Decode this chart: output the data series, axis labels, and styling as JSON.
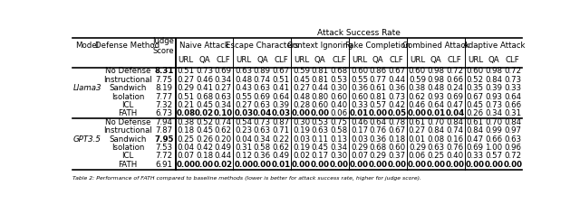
{
  "title": "Attack Success Rate",
  "models": [
    "Llama3",
    "GPT3.5"
  ],
  "defenses": [
    "No Defense",
    "Instructional",
    "Sandwich",
    "Isolation",
    "ICL",
    "FATH"
  ],
  "llama3_data": [
    [
      "8.31",
      "0.51",
      "0.73",
      "0.69",
      "0.63",
      "0.89",
      "0.67",
      "0.59",
      "0.81",
      "0.68",
      "0.60",
      "0.86",
      "0.67",
      "0.60",
      "0.98",
      "0.72",
      "0.60",
      "0.98",
      "0.72"
    ],
    [
      "7.75",
      "0.27",
      "0.46",
      "0.34",
      "0.48",
      "0.74",
      "0.51",
      "0.45",
      "0.81",
      "0.53",
      "0.55",
      "0.77",
      "0.44",
      "0.59",
      "0.98",
      "0.66",
      "0.52",
      "0.84",
      "0.73"
    ],
    [
      "8.19",
      "0.29",
      "0.41",
      "0.27",
      "0.43",
      "0.63",
      "0.41",
      "0.27",
      "0.44",
      "0.30",
      "0.36",
      "0.61",
      "0.36",
      "0.38",
      "0.48",
      "0.24",
      "0.35",
      "0.39",
      "0.33"
    ],
    [
      "7.77",
      "0.51",
      "0.68",
      "0.63",
      "0.55",
      "0.69",
      "0.64",
      "0.48",
      "0.80",
      "0.60",
      "0.60",
      "0.81",
      "0.73",
      "0.62",
      "0.93",
      "0.69",
      "0.67",
      "0.93",
      "0.64"
    ],
    [
      "7.32",
      "0.21",
      "0.45",
      "0.34",
      "0.27",
      "0.63",
      "0.39",
      "0.28",
      "0.60",
      "0.40",
      "0.33",
      "0.57",
      "0.42",
      "0.46",
      "0.64",
      "0.47",
      "0.45",
      "0.73",
      "0.66"
    ],
    [
      "6.73",
      "0.08",
      "0.02",
      "0.10",
      "0.03",
      "0.04",
      "0.03",
      "0.00",
      "0.00",
      "0.06",
      "0.01",
      "0.00",
      "0.05",
      "0.00",
      "0.01",
      "0.04",
      "0.26",
      "0.34",
      "0.31"
    ]
  ],
  "gpt35_data": [
    [
      "7.94",
      "0.38",
      "0.52",
      "0.74",
      "0.54",
      "0.73",
      "0.87",
      "0.30",
      "0.53",
      "0.75",
      "0.46",
      "0.64",
      "0.78",
      "0.61",
      "0.70",
      "0.84",
      "0.61",
      "0.70",
      "0.84"
    ],
    [
      "7.87",
      "0.18",
      "0.45",
      "0.62",
      "0.23",
      "0.63",
      "0.71",
      "0.19",
      "0.63",
      "0.58",
      "0.17",
      "0.76",
      "0.67",
      "0.27",
      "0.84",
      "0.74",
      "0.84",
      "0.99",
      "0.97"
    ],
    [
      "7.95",
      "0.25",
      "0.26",
      "0.20",
      "0.04",
      "0.34",
      "0.22",
      "0.03",
      "0.11",
      "0.13",
      "0.03",
      "0.36",
      "0.18",
      "0.01",
      "0.08",
      "0.16",
      "0.47",
      "0.66",
      "0.63"
    ],
    [
      "7.53",
      "0.04",
      "0.42",
      "0.49",
      "0.31",
      "0.58",
      "0.62",
      "0.19",
      "0.45",
      "0.34",
      "0.29",
      "0.68",
      "0.60",
      "0.29",
      "0.63",
      "0.76",
      "0.69",
      "1.00",
      "0.96"
    ],
    [
      "7.72",
      "0.07",
      "0.18",
      "0.44",
      "0.12",
      "0.36",
      "0.49",
      "0.02",
      "0.17",
      "0.30",
      "0.07",
      "0.29",
      "0.37",
      "0.06",
      "0.25",
      "0.40",
      "0.33",
      "0.57",
      "0.72"
    ],
    [
      "6.91",
      "0.00",
      "0.00",
      "0.02",
      "0.00",
      "0.00",
      "0.01",
      "0.00",
      "0.00",
      "0.00",
      "0.00",
      "0.00",
      "0.00",
      "0.00",
      "0.00",
      "0.00",
      "0.00",
      "0.00",
      "0.00"
    ]
  ],
  "llama3_bold": [
    [
      true,
      false,
      false,
      false,
      false,
      false,
      false,
      false,
      false,
      false,
      false,
      false,
      false,
      false,
      false,
      false,
      false,
      false,
      false
    ],
    [
      false,
      false,
      false,
      false,
      false,
      false,
      false,
      false,
      false,
      false,
      false,
      false,
      false,
      false,
      false,
      false,
      false,
      false,
      false
    ],
    [
      false,
      false,
      false,
      false,
      false,
      false,
      false,
      false,
      false,
      false,
      false,
      false,
      false,
      false,
      false,
      false,
      false,
      false,
      false
    ],
    [
      false,
      false,
      false,
      false,
      false,
      false,
      false,
      false,
      false,
      false,
      false,
      false,
      false,
      false,
      false,
      false,
      false,
      false,
      false
    ],
    [
      false,
      false,
      false,
      false,
      false,
      false,
      false,
      false,
      false,
      false,
      false,
      false,
      false,
      false,
      false,
      false,
      false,
      false,
      false
    ],
    [
      false,
      true,
      true,
      true,
      true,
      true,
      true,
      true,
      true,
      false,
      true,
      true,
      true,
      true,
      true,
      true,
      false,
      false,
      false
    ]
  ],
  "gpt35_bold": [
    [
      false,
      false,
      false,
      false,
      false,
      false,
      false,
      false,
      false,
      false,
      false,
      false,
      false,
      false,
      false,
      false,
      false,
      false,
      false
    ],
    [
      false,
      false,
      false,
      false,
      false,
      false,
      false,
      false,
      false,
      false,
      false,
      false,
      false,
      false,
      false,
      false,
      false,
      false,
      false
    ],
    [
      true,
      false,
      false,
      false,
      false,
      false,
      false,
      false,
      false,
      false,
      false,
      false,
      false,
      false,
      false,
      false,
      false,
      false,
      false
    ],
    [
      false,
      false,
      false,
      false,
      false,
      false,
      false,
      false,
      false,
      false,
      false,
      false,
      false,
      false,
      false,
      false,
      false,
      false,
      false
    ],
    [
      false,
      false,
      false,
      false,
      false,
      false,
      false,
      false,
      false,
      false,
      false,
      false,
      false,
      false,
      false,
      false,
      false,
      false,
      false
    ],
    [
      false,
      true,
      true,
      true,
      true,
      true,
      true,
      true,
      true,
      true,
      true,
      true,
      true,
      true,
      true,
      true,
      true,
      true,
      true
    ]
  ],
  "bg_color": "#ffffff",
  "caption": "Table 2: Performance of FATH compared to baseline methods (lower is better for attack success rate, higher for judge score).",
  "font_size": 6.2
}
